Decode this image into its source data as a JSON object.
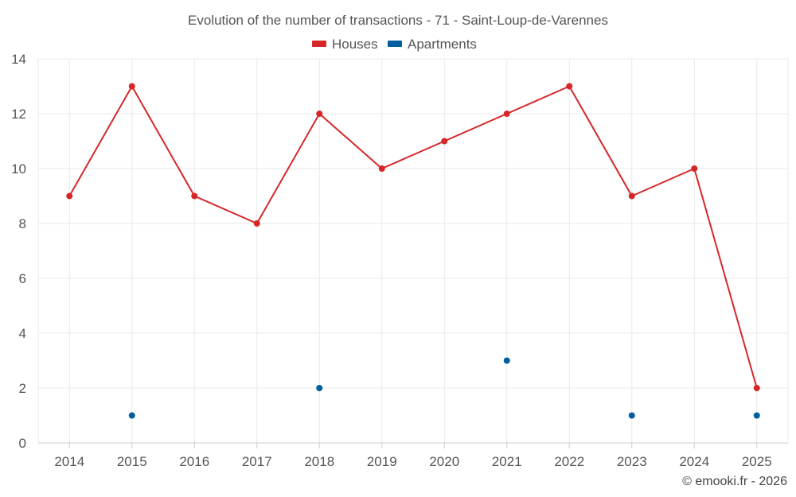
{
  "chart_data": {
    "type": "line",
    "title": "Evolution of the number of transactions - 71 - Saint-Loup-de-Varennes",
    "categories": [
      "2014",
      "2015",
      "2016",
      "2017",
      "2018",
      "2019",
      "2020",
      "2021",
      "2022",
      "2023",
      "2024",
      "2025"
    ],
    "ylim": [
      0,
      14
    ],
    "yticks": [
      0,
      2,
      4,
      6,
      8,
      10,
      12,
      14
    ],
    "grid": true,
    "legend_position": "top-center",
    "series": [
      {
        "name": "Houses",
        "color": "#d62728",
        "style": "line-with-markers",
        "values": [
          9,
          13,
          9,
          8,
          12,
          10,
          11,
          12,
          13,
          9,
          10,
          2
        ]
      },
      {
        "name": "Apartments",
        "color": "#005f9e",
        "style": "markers-only",
        "values": [
          null,
          1,
          null,
          null,
          2,
          null,
          null,
          3,
          null,
          1,
          null,
          1
        ]
      }
    ]
  },
  "credit": "© emooki.fr - 2026"
}
